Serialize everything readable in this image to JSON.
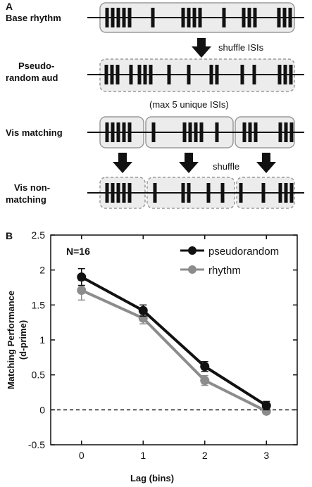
{
  "panel_a": {
    "letter": "A",
    "rows": [
      {
        "label_lines": [
          "Base rhythm"
        ]
      },
      {
        "label_lines": [
          "Pseudo-",
          "random aud"
        ]
      },
      {
        "label_lines": [
          "Vis matching"
        ]
      },
      {
        "label_lines": [
          "Vis non-",
          "matching"
        ]
      }
    ],
    "annotations": {
      "shuffle_isis": "shuffle ISIs",
      "max_unique": "(max 5 unique ISIs)",
      "shuffle": "shuffle"
    }
  },
  "panel_b": {
    "letter": "B",
    "n_label": "N=16"
  },
  "colors": {
    "pseudorandom": "#111111",
    "rhythm": "#8c8c8c",
    "box_fill": "#ececec",
    "box_stroke": "#9a9a9a"
  },
  "chart_data": {
    "type": "line",
    "x": [
      0,
      1,
      2,
      3
    ],
    "xticks": [
      "0",
      "1",
      "2",
      "3"
    ],
    "yticks": [
      "-0.5",
      "0",
      "0.5",
      "1",
      "1.5",
      "2",
      "2.5"
    ],
    "xlim": [
      -0.5,
      3.5
    ],
    "ylim": [
      -0.5,
      2.5
    ],
    "xlabel": "Lag (bins)",
    "ylabel_lines": [
      "Matching Performance",
      "(d-prime)"
    ],
    "legend_position": "top-right",
    "reference_line": {
      "y": 0,
      "style": "dashed"
    },
    "series": [
      {
        "name": "pseudorandom",
        "values": [
          1.9,
          1.42,
          0.62,
          0.06
        ],
        "errors": [
          0.12,
          0.08,
          0.07,
          0.06
        ]
      },
      {
        "name": "rhythm",
        "values": [
          1.71,
          1.31,
          0.42,
          -0.02
        ],
        "errors": [
          0.14,
          0.08,
          0.07,
          0.04
        ]
      }
    ]
  }
}
